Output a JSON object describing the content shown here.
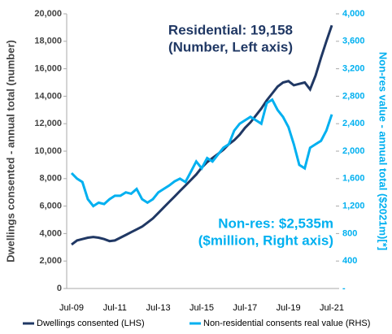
{
  "chart_data": {
    "type": "line",
    "y_label": "Dwellings consented - annual total (number)",
    "y2_label": "Non-res value - annual total ($2021m)[*]",
    "annotations": [
      {
        "text": "Residential: 19,158",
        "color": "#203864"
      },
      {
        "text": "(Number, Left axis)",
        "color": "#203864"
      },
      {
        "text": "Non-res: $2,535m",
        "color": "#00b0f0"
      },
      {
        "text": "($million, Right axis)",
        "color": "#00b0f0"
      }
    ],
    "categories": [
      "Jul-09",
      null,
      null,
      null,
      null,
      null,
      null,
      null,
      "Jul-11",
      null,
      null,
      null,
      null,
      null,
      null,
      null,
      "Jul-13",
      null,
      null,
      null,
      null,
      null,
      null,
      null,
      "Jul-15",
      null,
      null,
      null,
      null,
      null,
      null,
      null,
      "Jul-17",
      null,
      null,
      null,
      null,
      null,
      null,
      null,
      "Jul-19",
      null,
      null,
      null,
      null,
      null,
      null,
      null,
      "Jul-21"
    ],
    "series": [
      {
        "name": "Dwellings consented (LHS)",
        "color": "#203864",
        "axis": "y",
        "values": [
          3200,
          3500,
          3600,
          3700,
          3750,
          3700,
          3600,
          3450,
          3500,
          3700,
          3900,
          4100,
          4300,
          4500,
          4800,
          5100,
          5500,
          5900,
          6300,
          6700,
          7100,
          7500,
          7900,
          8300,
          8800,
          9200,
          9500,
          9800,
          10100,
          10500,
          10800,
          11200,
          11700,
          12100,
          12600,
          13100,
          13700,
          14200,
          14700,
          15000,
          15100,
          14800,
          14900,
          15000,
          14500,
          15500,
          16800,
          18000,
          19158
        ]
      },
      {
        "name": "Non-residential consents real value (RHS)",
        "color": "#00b0f0",
        "axis": "y2",
        "values": [
          1680,
          1600,
          1550,
          1300,
          1200,
          1250,
          1230,
          1300,
          1350,
          1350,
          1400,
          1380,
          1450,
          1300,
          1250,
          1300,
          1400,
          1450,
          1500,
          1560,
          1600,
          1550,
          1700,
          1850,
          1750,
          1900,
          1850,
          1950,
          2050,
          2100,
          2300,
          2400,
          2450,
          2500,
          2450,
          2400,
          2700,
          2750,
          2600,
          2500,
          2350,
          2100,
          1800,
          1750,
          2050,
          2100,
          2150,
          2300,
          2535
        ]
      }
    ],
    "ylim": [
      0,
      20000
    ],
    "yticks": [
      0,
      {
        "value": 2000,
        "label": "2,000"
      },
      {
        "value": 4000,
        "label": "4,000"
      },
      {
        "value": 6000,
        "label": "6,000"
      },
      {
        "value": 8000,
        "label": "8,000"
      },
      {
        "value": 10000,
        "label": "10,000"
      },
      {
        "value": 12000,
        "label": "12,000"
      },
      {
        "value": 14000,
        "label": "14,000"
      },
      {
        "value": 16000,
        "label": "16,000"
      },
      {
        "value": 18000,
        "label": "18,000"
      },
      {
        "value": 20000,
        "label": "20,000"
      }
    ],
    "y2lim": [
      0,
      4000
    ],
    "y2ticks": [
      {
        "value": 0,
        "label": "-"
      },
      400,
      800,
      {
        "value": 1200,
        "label": "1,200"
      },
      {
        "value": 1600,
        "label": "1,600"
      },
      {
        "value": 2000,
        "label": "2,000"
      },
      {
        "value": 2400,
        "label": "2,400"
      },
      {
        "value": 2800,
        "label": "2,800"
      },
      {
        "value": 3200,
        "label": "3,200"
      },
      {
        "value": 3600,
        "label": "3,600"
      },
      {
        "value": 4000,
        "label": "4,000"
      }
    ]
  }
}
